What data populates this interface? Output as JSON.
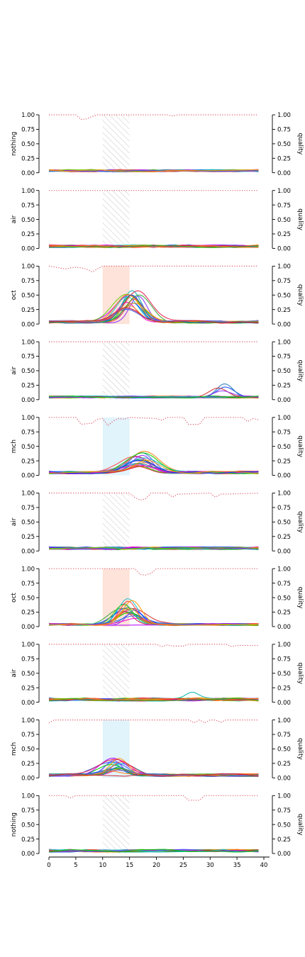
{
  "figure": {
    "right_axis_label": "quality",
    "x_ticks": [
      0,
      5,
      10,
      15,
      20,
      25,
      30,
      35,
      40
    ],
    "y_ticks": [
      "0.00",
      "0.25",
      "0.50",
      "0.75",
      "1.00"
    ],
    "right_y_ticks": [
      "0.00",
      "0.25",
      "0.50",
      "0.75",
      "1.00"
    ]
  },
  "chart_data": [
    {
      "type": "line",
      "ylabel": "nothing",
      "xlim": [
        0,
        40
      ],
      "ylim": [
        0,
        1
      ],
      "stimulus": {
        "start": 10,
        "end": 15,
        "style": "hatched",
        "color": "#c8c8c8"
      },
      "quality": [
        [
          0,
          1
        ],
        [
          5,
          1
        ],
        [
          6,
          0.92
        ],
        [
          7,
          0.93
        ],
        [
          8,
          0.97
        ],
        [
          9,
          1
        ],
        [
          22,
          1
        ],
        [
          23,
          0.98
        ],
        [
          24,
          1
        ],
        [
          40,
          1
        ]
      ],
      "baseline": 0.03,
      "peak": null,
      "noise": 0.04,
      "seed": 11
    },
    {
      "type": "line",
      "ylabel": "air",
      "xlim": [
        0,
        40
      ],
      "ylim": [
        0,
        1
      ],
      "stimulus": {
        "start": 10,
        "end": 15,
        "style": "hatched",
        "color": "#c8c8c8"
      },
      "quality": [
        [
          0,
          1
        ],
        [
          40,
          1
        ]
      ],
      "baseline": 0.03,
      "peak": null,
      "noise": 0.05,
      "seed": 23
    },
    {
      "type": "line",
      "ylabel": "oct",
      "xlim": [
        0,
        40
      ],
      "ylim": [
        0,
        1
      ],
      "stimulus": {
        "start": 10,
        "end": 15,
        "style": "filled",
        "color": "#fde3d9"
      },
      "quality": [
        [
          0,
          1
        ],
        [
          2,
          0.97
        ],
        [
          3,
          0.95
        ],
        [
          4,
          0.97
        ],
        [
          5,
          0.98
        ],
        [
          6,
          0.97
        ],
        [
          7,
          0.95
        ],
        [
          8,
          0.9
        ],
        [
          9,
          0.95
        ],
        [
          10,
          1
        ],
        [
          40,
          1
        ]
      ],
      "baseline": 0.03,
      "peak": {
        "center": 15.5,
        "width": 3,
        "max": 0.55
      },
      "noise": 0.05,
      "seed": 37
    },
    {
      "type": "line",
      "ylabel": "air",
      "xlim": [
        0,
        40
      ],
      "ylim": [
        0,
        1
      ],
      "stimulus": {
        "start": 10,
        "end": 15,
        "style": "hatched",
        "color": "#c8c8c8"
      },
      "quality": [
        [
          0,
          1
        ],
        [
          40,
          1
        ]
      ],
      "baseline": 0.04,
      "peak": {
        "center": 32.5,
        "width": 2.5,
        "max": 0.28,
        "fraction": 0.15
      },
      "noise": 0.04,
      "seed": 41
    },
    {
      "type": "line",
      "ylabel": "mch",
      "xlim": [
        0,
        40
      ],
      "ylim": [
        0,
        1
      ],
      "stimulus": {
        "start": 10,
        "end": 15,
        "style": "filled",
        "color": "#e1f3fb"
      },
      "quality": [
        [
          0,
          1
        ],
        [
          5,
          1
        ],
        [
          6,
          0.88
        ],
        [
          8,
          0.9
        ],
        [
          9,
          0.97
        ],
        [
          10,
          0.98
        ],
        [
          11,
          0.86
        ],
        [
          12,
          0.94
        ],
        [
          13,
          0.98
        ],
        [
          14,
          0.97
        ],
        [
          15,
          1
        ],
        [
          20,
          0.98
        ],
        [
          21,
          0.95
        ],
        [
          22,
          1
        ],
        [
          25,
          1
        ],
        [
          26,
          0.88
        ],
        [
          28,
          0.88
        ],
        [
          29,
          1
        ],
        [
          36,
          1
        ],
        [
          37,
          0.93
        ],
        [
          38,
          0.98
        ],
        [
          39,
          0.96
        ],
        [
          40,
          1
        ]
      ],
      "baseline": 0.04,
      "peak": {
        "center": 17,
        "width": 3.5,
        "max": 0.4
      },
      "noise": 0.05,
      "seed": 53
    },
    {
      "type": "line",
      "ylabel": "air",
      "xlim": [
        0,
        40
      ],
      "ylim": [
        0,
        1
      ],
      "stimulus": {
        "start": 10,
        "end": 15,
        "style": "hatched",
        "color": "#c8c8c8"
      },
      "quality": [
        [
          0,
          1
        ],
        [
          15,
          1
        ],
        [
          16,
          0.92
        ],
        [
          17,
          0.88
        ],
        [
          18,
          0.9
        ],
        [
          19,
          1
        ],
        [
          22,
          1
        ],
        [
          23,
          0.93
        ],
        [
          24,
          0.98
        ],
        [
          30,
          1
        ],
        [
          31,
          0.93
        ],
        [
          32,
          0.98
        ],
        [
          40,
          1
        ]
      ],
      "baseline": 0.04,
      "peak": null,
      "noise": 0.05,
      "seed": 67
    },
    {
      "type": "line",
      "ylabel": "oct",
      "xlim": [
        0,
        40
      ],
      "ylim": [
        0,
        1
      ],
      "stimulus": {
        "start": 10,
        "end": 15,
        "style": "filled",
        "color": "#fde3d9"
      },
      "quality": [
        [
          0,
          1
        ],
        [
          16,
          1
        ],
        [
          17,
          0.9
        ],
        [
          18,
          0.89
        ],
        [
          19,
          0.92
        ],
        [
          20,
          1
        ],
        [
          40,
          1
        ]
      ],
      "baseline": 0.03,
      "peak": {
        "center": 15,
        "width": 3,
        "max": 0.45
      },
      "noise": 0.04,
      "seed": 79
    },
    {
      "type": "line",
      "ylabel": "air",
      "xlim": [
        0,
        40
      ],
      "ylim": [
        0,
        1
      ],
      "stimulus": {
        "start": 10,
        "end": 15,
        "style": "hatched",
        "color": "#c8c8c8"
      },
      "quality": [
        [
          0,
          1
        ],
        [
          20,
          1
        ],
        [
          21,
          0.96
        ],
        [
          22,
          0.99
        ],
        [
          23,
          0.97
        ],
        [
          25,
          0.97
        ],
        [
          26,
          1
        ],
        [
          33,
          1
        ],
        [
          34,
          0.96
        ],
        [
          35,
          0.98
        ],
        [
          39,
          0.98
        ],
        [
          40,
          0.93
        ]
      ],
      "baseline": 0.04,
      "peak": {
        "center": 25.5,
        "width": 2,
        "max": 0.3,
        "fraction": 0.08
      },
      "noise": 0.06,
      "seed": 83
    },
    {
      "type": "line",
      "ylabel": "mch",
      "xlim": [
        0,
        40
      ],
      "ylim": [
        0,
        1
      ],
      "stimulus": {
        "start": 10,
        "end": 15,
        "style": "filled",
        "color": "#e1f3fb"
      },
      "quality": [
        [
          0,
          0.95
        ],
        [
          1,
          1
        ],
        [
          26,
          1
        ],
        [
          27,
          0.95
        ],
        [
          28,
          1
        ],
        [
          29,
          0.95
        ],
        [
          30,
          1
        ],
        [
          31,
          1
        ],
        [
          32,
          0.96
        ],
        [
          33,
          1
        ],
        [
          40,
          1
        ]
      ],
      "baseline": 0.04,
      "peak": {
        "center": 12.5,
        "width": 3,
        "max": 0.3
      },
      "noise": 0.05,
      "seed": 97
    },
    {
      "type": "line",
      "ylabel": "nothing",
      "xlim": [
        0,
        40
      ],
      "ylim": [
        0,
        1
      ],
      "stimulus": {
        "start": 10,
        "end": 15,
        "style": "hatched",
        "color": "#c8c8c8"
      },
      "quality": [
        [
          0,
          1
        ],
        [
          3,
          1
        ],
        [
          4,
          0.96
        ],
        [
          5,
          1
        ],
        [
          25,
          1
        ],
        [
          26,
          0.92
        ],
        [
          28,
          0.92
        ],
        [
          29,
          1
        ],
        [
          40,
          1
        ]
      ],
      "baseline": 0.04,
      "peak": null,
      "noise": 0.05,
      "seed": 101
    }
  ]
}
